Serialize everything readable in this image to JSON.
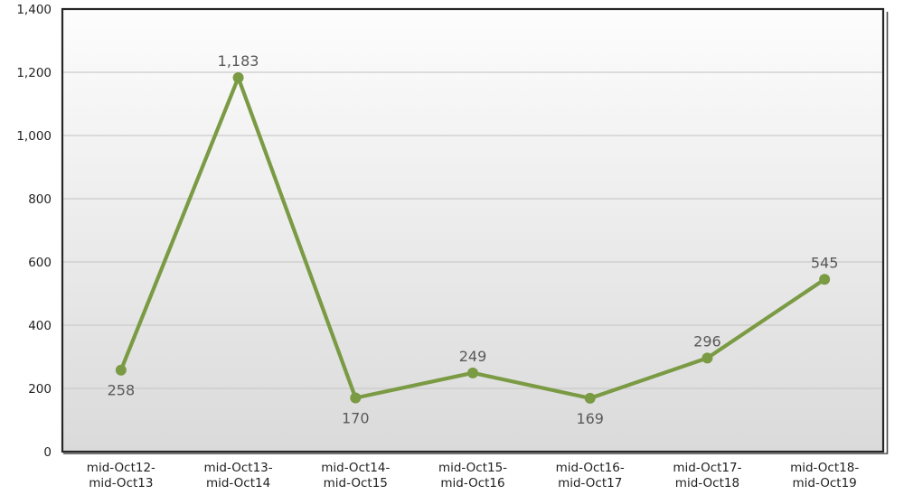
{
  "chart_data": {
    "type": "line",
    "title": "",
    "xlabel": "",
    "ylabel": "",
    "legend": "none",
    "grid": true,
    "ylim": [
      0,
      1400
    ],
    "y_tick_step": 200,
    "y_ticks": [
      {
        "value": 0,
        "label": "0"
      },
      {
        "value": 200,
        "label": "200"
      },
      {
        "value": 400,
        "label": "400"
      },
      {
        "value": 600,
        "label": "600"
      },
      {
        "value": 800,
        "label": "800"
      },
      {
        "value": 1000,
        "label": "1,000"
      },
      {
        "value": 1200,
        "label": "1,200"
      },
      {
        "value": 1400,
        "label": "1,400"
      }
    ],
    "categories": [
      [
        "mid-Oct12-",
        "mid-Oct13"
      ],
      [
        "mid-Oct13-",
        "mid-Oct14"
      ],
      [
        "mid-Oct14-",
        "mid-Oct15"
      ],
      [
        "mid-Oct15-",
        "mid-Oct16"
      ],
      [
        "mid-Oct16-",
        "mid-Oct17"
      ],
      [
        "mid-Oct17-",
        "mid-Oct18"
      ],
      [
        "mid-Oct18-",
        "mid-Oct19"
      ]
    ],
    "series": [
      {
        "name": "",
        "values": [
          258,
          1183,
          170,
          249,
          169,
          296,
          545
        ],
        "data_labels": [
          "258",
          "1,183",
          "170",
          "249",
          "169",
          "296",
          "545"
        ],
        "label_positions": [
          "below",
          "above",
          "below",
          "above",
          "below",
          "above",
          "above"
        ]
      }
    ],
    "colors": {
      "line": "#7B9A44",
      "marker": "#7B9A44",
      "data_label": "#595959",
      "axis_label": "#1f1f1f",
      "gridline": "#CBCBCB",
      "plot_border": "#262626",
      "plot_shadow": "#4a4a4a",
      "plot_bg_top": "#FDFDFD",
      "plot_bg_bottom": "#DADADA",
      "page_bg": "#FFFFFF"
    }
  }
}
